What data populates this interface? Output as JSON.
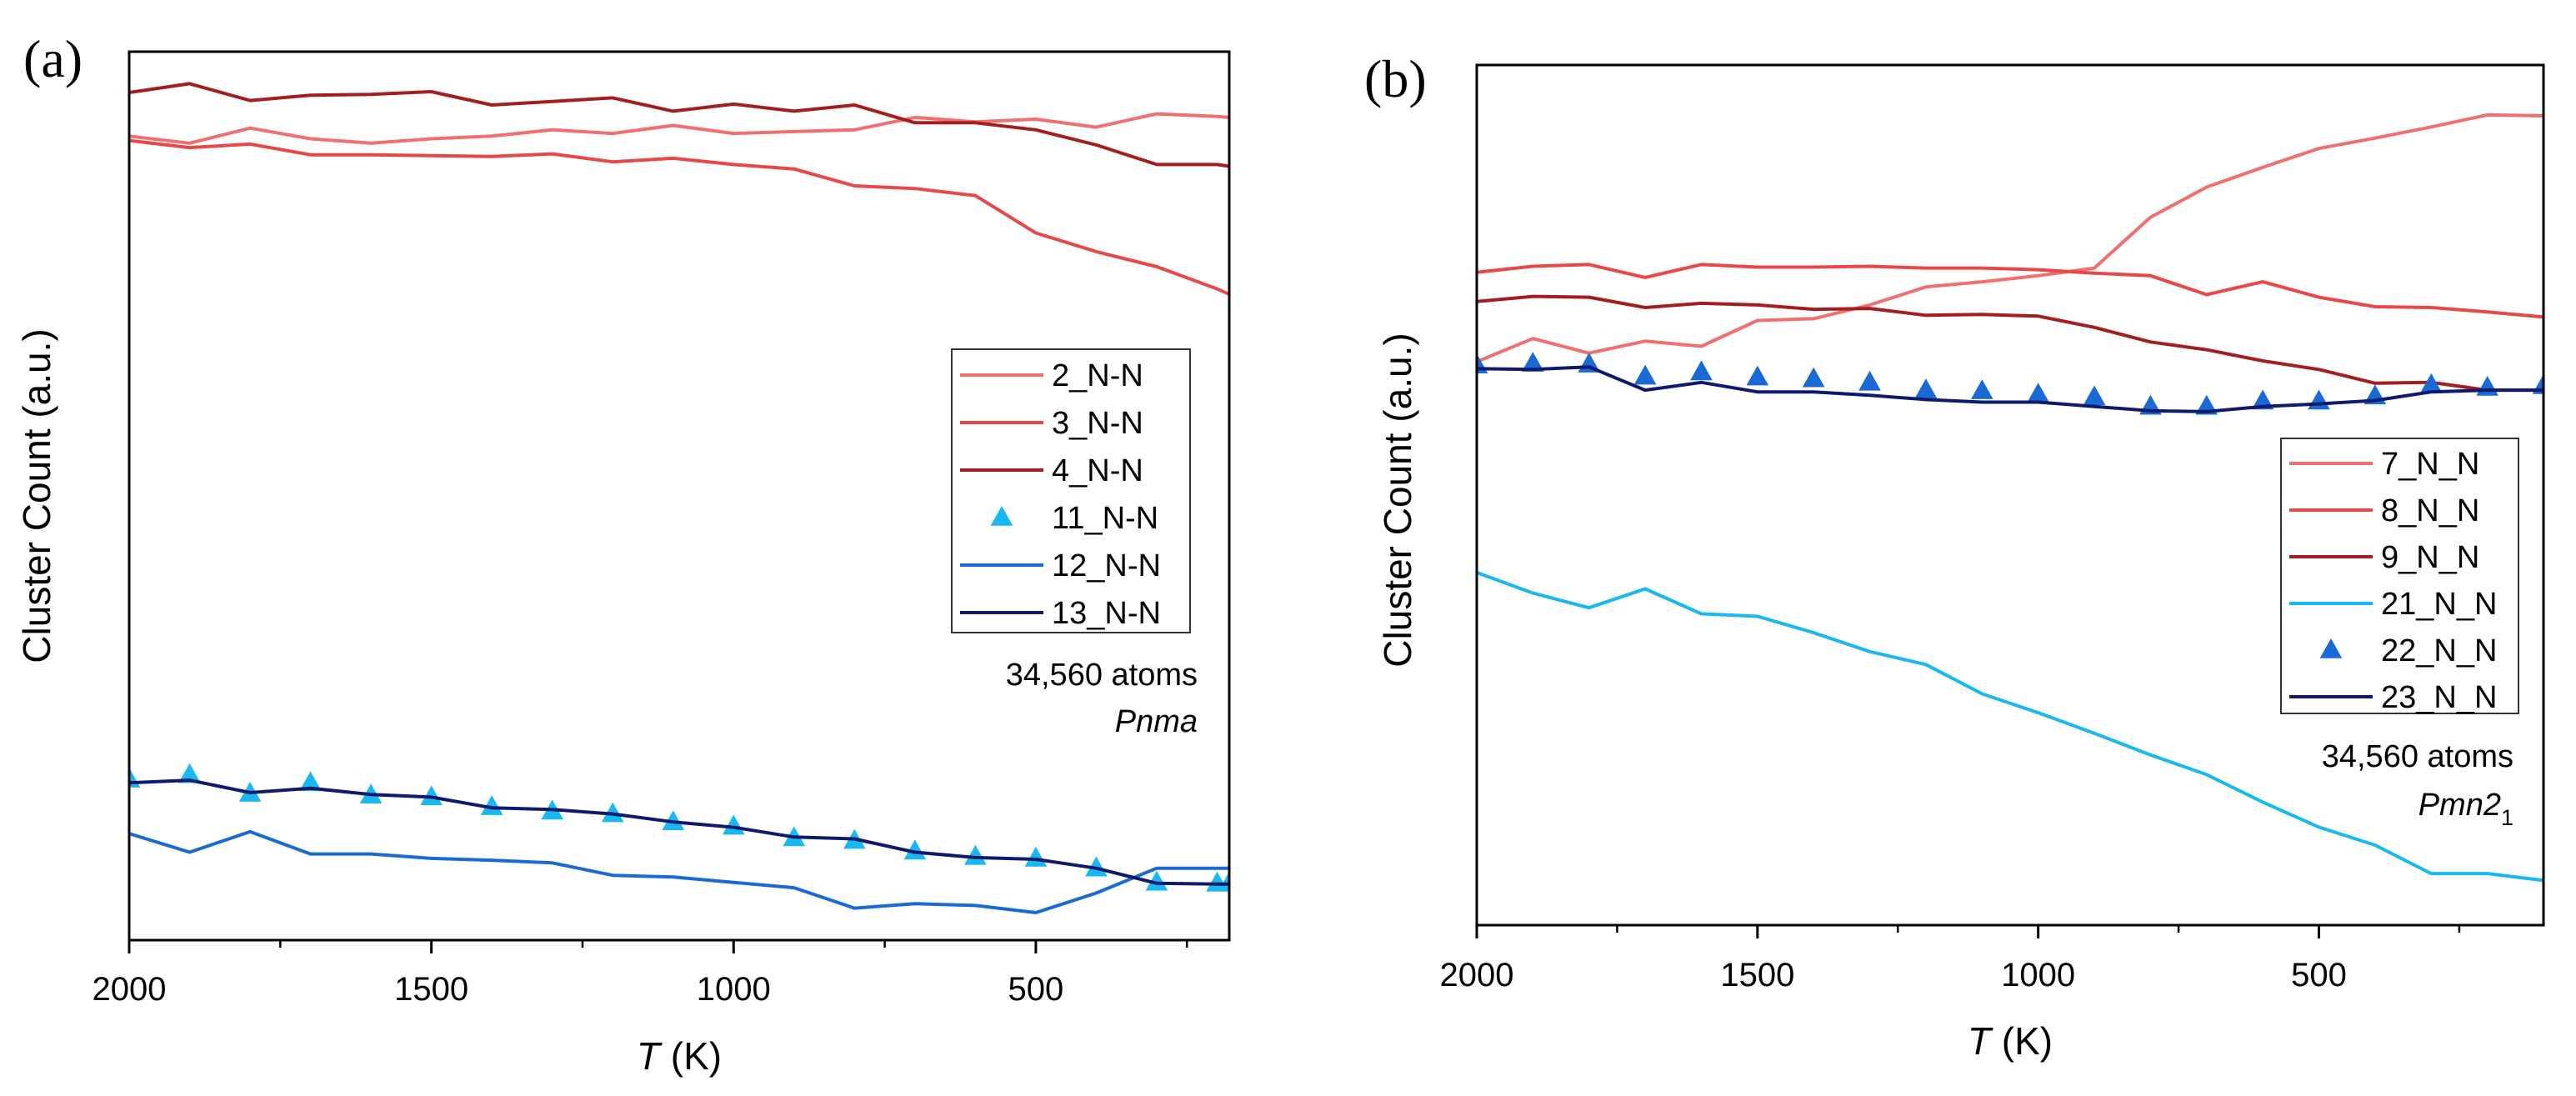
{
  "chart_data": [
    {
      "panel": "(a)",
      "type": "line",
      "xlabel_var": "T",
      "xlabel_unit": " (K)",
      "ylabel": "Cluster Count (a.u.)",
      "xlim": [
        2000,
        180
      ],
      "ylim": [
        0,
        1
      ],
      "x_ticks": [
        2000,
        1500,
        1000,
        500
      ],
      "x_tick_labels": [
        "2000",
        "1500",
        "1000",
        "500"
      ],
      "x_minor_ticks": [
        1750,
        1250,
        750,
        250
      ],
      "y_ticks_shown": false,
      "legend_position": "right",
      "annotation_lines": [
        "34,560 atoms",
        "Pnma"
      ],
      "x": [
        2000,
        1900,
        1800,
        1700,
        1600,
        1500,
        1400,
        1300,
        1200,
        1100,
        1000,
        900,
        800,
        700,
        600,
        500,
        400,
        300,
        200,
        180
      ],
      "series": [
        {
          "name": "2_N-N",
          "color": "#f07070",
          "style": "line",
          "values": [
            0.905,
            0.897,
            0.914,
            0.902,
            0.897,
            0.902,
            0.905,
            0.912,
            0.908,
            0.917,
            0.908,
            0.91,
            0.912,
            0.926,
            0.921,
            0.924,
            0.915,
            0.93,
            0.927,
            0.926
          ]
        },
        {
          "name": "3_N-N",
          "color": "#e84848",
          "style": "line",
          "values": [
            0.9,
            0.892,
            0.896,
            0.884,
            0.884,
            0.883,
            0.882,
            0.885,
            0.876,
            0.88,
            0.873,
            0.868,
            0.849,
            0.846,
            0.838,
            0.796,
            0.775,
            0.758,
            0.733,
            0.727
          ]
        },
        {
          "name": "4_N-N",
          "color": "#a51d1d",
          "style": "line",
          "values": [
            0.954,
            0.964,
            0.945,
            0.951,
            0.952,
            0.955,
            0.94,
            0.944,
            0.948,
            0.933,
            0.941,
            0.933,
            0.94,
            0.92,
            0.92,
            0.912,
            0.895,
            0.873,
            0.873,
            0.871
          ]
        },
        {
          "name": "11_N-N",
          "color": "#1ab8f0",
          "style": "marker",
          "values": [
            0.181,
            0.186,
            0.165,
            0.177,
            0.163,
            0.161,
            0.15,
            0.145,
            0.142,
            0.133,
            0.128,
            0.115,
            0.112,
            0.1,
            0.094,
            0.092,
            0.081,
            0.065,
            0.064,
            0.064
          ]
        },
        {
          "name": "12_N-N",
          "color": "#1a6ad6",
          "style": "line",
          "values": [
            0.12,
            0.099,
            0.122,
            0.097,
            0.097,
            0.092,
            0.09,
            0.087,
            0.073,
            0.071,
            0.065,
            0.059,
            0.036,
            0.041,
            0.039,
            0.031,
            0.053,
            0.081,
            0.081,
            0.081
          ]
        },
        {
          "name": "13_N-N",
          "color": "#0d1a6e",
          "style": "line",
          "values": [
            0.177,
            0.18,
            0.166,
            0.171,
            0.164,
            0.161,
            0.149,
            0.147,
            0.142,
            0.133,
            0.127,
            0.116,
            0.114,
            0.099,
            0.093,
            0.091,
            0.081,
            0.064,
            0.063,
            0.063
          ]
        }
      ]
    },
    {
      "panel": "(b)",
      "type": "line",
      "xlabel_var": "T",
      "xlabel_unit": " (K)",
      "ylabel": "Cluster Count (a.u.)",
      "xlim": [
        2000,
        100
      ],
      "ylim": [
        0,
        1
      ],
      "x_ticks": [
        2000,
        1500,
        1000,
        500
      ],
      "x_tick_labels": [
        "2000",
        "1500",
        "1000",
        "500"
      ],
      "x_minor_ticks": [
        1750,
        1250,
        750,
        250
      ],
      "y_ticks_shown": false,
      "legend_position": "right",
      "annotation_lines": [
        "34,560 atoms",
        "Pmn2",
        "1"
      ],
      "x": [
        2000,
        1900,
        1800,
        1700,
        1600,
        1500,
        1400,
        1300,
        1200,
        1100,
        1000,
        900,
        800,
        700,
        600,
        500,
        400,
        300,
        200,
        100
      ],
      "series": [
        {
          "name": "7_N_N",
          "color": "#f07070",
          "style": "line",
          "values": [
            0.655,
            0.682,
            0.665,
            0.679,
            0.673,
            0.703,
            0.705,
            0.721,
            0.742,
            0.748,
            0.755,
            0.764,
            0.823,
            0.858,
            0.881,
            0.903,
            0.915,
            0.928,
            0.942,
            0.941
          ]
        },
        {
          "name": "8_N_N",
          "color": "#e84848",
          "style": "line",
          "values": [
            0.759,
            0.766,
            0.768,
            0.753,
            0.768,
            0.765,
            0.765,
            0.766,
            0.764,
            0.764,
            0.762,
            0.758,
            0.755,
            0.733,
            0.748,
            0.73,
            0.719,
            0.718,
            0.713,
            0.707
          ]
        },
        {
          "name": "9_N_N",
          "color": "#a51d1d",
          "style": "line",
          "values": [
            0.725,
            0.731,
            0.73,
            0.718,
            0.723,
            0.721,
            0.716,
            0.717,
            0.709,
            0.71,
            0.708,
            0.695,
            0.678,
            0.669,
            0.656,
            0.646,
            0.63,
            0.631,
            0.622,
            0.622
          ]
        },
        {
          "name": "21_N_N",
          "color": "#1ab8f0",
          "style": "line",
          "values": [
            0.41,
            0.386,
            0.369,
            0.391,
            0.362,
            0.359,
            0.34,
            0.318,
            0.303,
            0.269,
            0.247,
            0.223,
            0.198,
            0.175,
            0.143,
            0.114,
            0.093,
            0.06,
            0.06,
            0.052
          ]
        },
        {
          "name": "22_N_N",
          "color": "#1a6ad6",
          "style": "marker",
          "values": [
            0.651,
            0.653,
            0.652,
            0.638,
            0.643,
            0.637,
            0.635,
            0.631,
            0.622,
            0.621,
            0.617,
            0.614,
            0.603,
            0.603,
            0.609,
            0.609,
            0.615,
            0.628,
            0.625,
            0.627
          ]
        },
        {
          "name": "23_N_N",
          "color": "#0d1a6e",
          "style": "line",
          "values": [
            0.647,
            0.646,
            0.649,
            0.622,
            0.631,
            0.62,
            0.62,
            0.616,
            0.611,
            0.608,
            0.608,
            0.603,
            0.598,
            0.597,
            0.603,
            0.606,
            0.61,
            0.62,
            0.622,
            0.622
          ]
        }
      ]
    }
  ]
}
